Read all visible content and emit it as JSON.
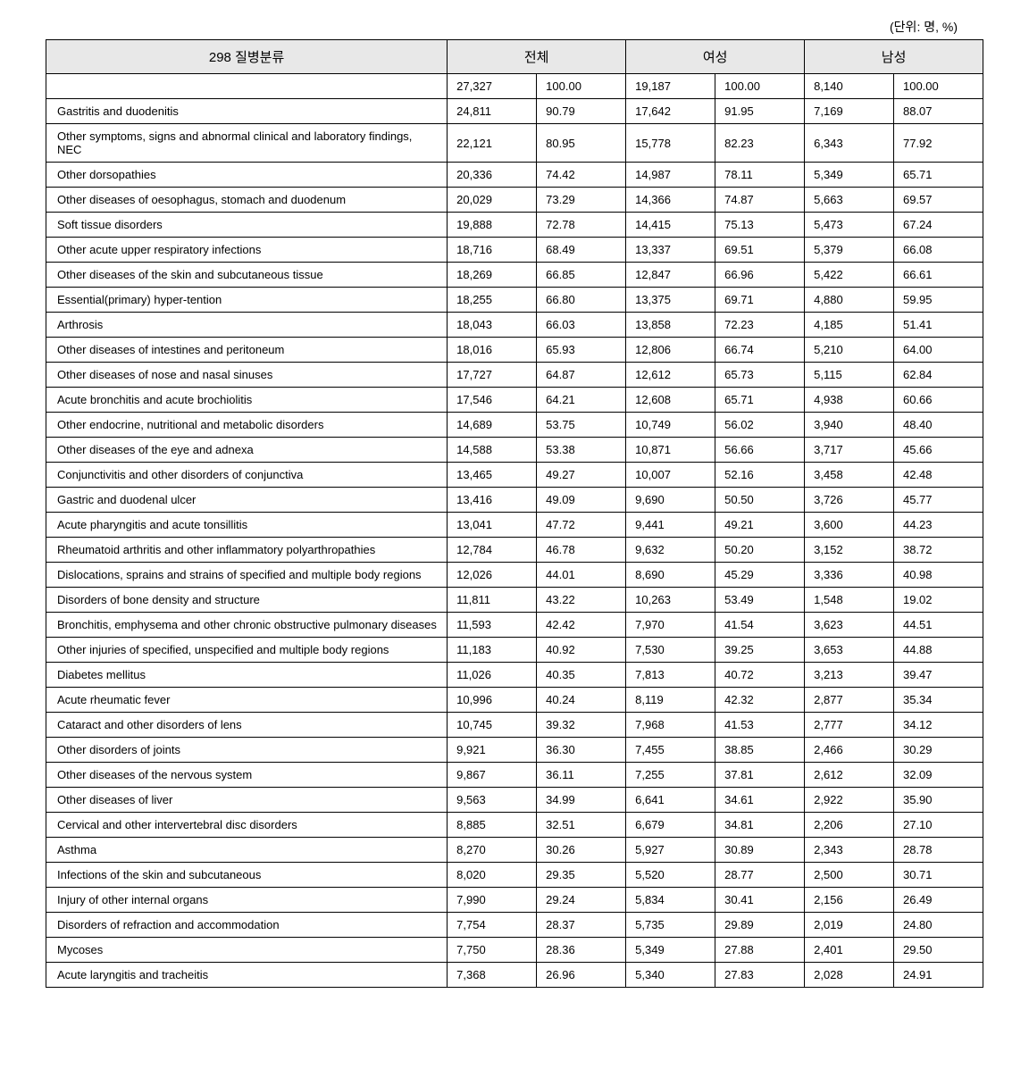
{
  "unit_label": "(단위: 명, %)",
  "headers": {
    "disease": "298 질병분류",
    "total": "전체",
    "female": "여성",
    "male": "남성"
  },
  "rows": [
    {
      "name": "",
      "total_n": "27,327",
      "total_p": "100.00",
      "female_n": "19,187",
      "female_p": "100.00",
      "male_n": "8,140",
      "male_p": "100.00"
    },
    {
      "name": "Gastritis and duodenitis",
      "total_n": "24,811",
      "total_p": "90.79",
      "female_n": "17,642",
      "female_p": "91.95",
      "male_n": "7,169",
      "male_p": "88.07"
    },
    {
      "name": "Other symptoms, signs and abnormal clinical and laboratory findings, NEC",
      "total_n": "22,121",
      "total_p": "80.95",
      "female_n": "15,778",
      "female_p": "82.23",
      "male_n": "6,343",
      "male_p": "77.92"
    },
    {
      "name": "Other dorsopathies",
      "total_n": "20,336",
      "total_p": "74.42",
      "female_n": "14,987",
      "female_p": "78.11",
      "male_n": "5,349",
      "male_p": "65.71"
    },
    {
      "name": "Other diseases of oesophagus, stomach and duodenum",
      "total_n": "20,029",
      "total_p": "73.29",
      "female_n": "14,366",
      "female_p": "74.87",
      "male_n": "5,663",
      "male_p": "69.57"
    },
    {
      "name": "Soft tissue disorders",
      "total_n": "19,888",
      "total_p": "72.78",
      "female_n": "14,415",
      "female_p": "75.13",
      "male_n": "5,473",
      "male_p": "67.24"
    },
    {
      "name": "Other acute upper respiratory infections",
      "total_n": "18,716",
      "total_p": "68.49",
      "female_n": "13,337",
      "female_p": "69.51",
      "male_n": "5,379",
      "male_p": "66.08"
    },
    {
      "name": "Other diseases of the skin and subcutaneous tissue",
      "total_n": "18,269",
      "total_p": "66.85",
      "female_n": "12,847",
      "female_p": "66.96",
      "male_n": "5,422",
      "male_p": "66.61"
    },
    {
      "name": "Essential(primary) hyper-tention",
      "total_n": "18,255",
      "total_p": "66.80",
      "female_n": "13,375",
      "female_p": "69.71",
      "male_n": "4,880",
      "male_p": "59.95"
    },
    {
      "name": "Arthrosis",
      "total_n": "18,043",
      "total_p": "66.03",
      "female_n": "13,858",
      "female_p": "72.23",
      "male_n": "4,185",
      "male_p": "51.41"
    },
    {
      "name": "Other diseases of intestines and peritoneum",
      "total_n": "18,016",
      "total_p": "65.93",
      "female_n": "12,806",
      "female_p": "66.74",
      "male_n": "5,210",
      "male_p": "64.00"
    },
    {
      "name": "Other diseases of nose and nasal sinuses",
      "total_n": "17,727",
      "total_p": "64.87",
      "female_n": "12,612",
      "female_p": "65.73",
      "male_n": "5,115",
      "male_p": "62.84"
    },
    {
      "name": "Acute bronchitis and acute brochiolitis",
      "total_n": "17,546",
      "total_p": "64.21",
      "female_n": "12,608",
      "female_p": "65.71",
      "male_n": "4,938",
      "male_p": "60.66"
    },
    {
      "name": "Other endocrine, nutritional and metabolic disorders",
      "total_n": "14,689",
      "total_p": "53.75",
      "female_n": "10,749",
      "female_p": "56.02",
      "male_n": "3,940",
      "male_p": "48.40"
    },
    {
      "name": "Other diseases of the eye and adnexa",
      "total_n": "14,588",
      "total_p": "53.38",
      "female_n": "10,871",
      "female_p": "56.66",
      "male_n": "3,717",
      "male_p": "45.66"
    },
    {
      "name": "Conjunctivitis and other disorders of conjunctiva",
      "total_n": "13,465",
      "total_p": "49.27",
      "female_n": "10,007",
      "female_p": "52.16",
      "male_n": "3,458",
      "male_p": "42.48"
    },
    {
      "name": "Gastric and duodenal ulcer",
      "total_n": "13,416",
      "total_p": "49.09",
      "female_n": "9,690",
      "female_p": "50.50",
      "male_n": "3,726",
      "male_p": "45.77"
    },
    {
      "name": "Acute pharyngitis and acute tonsillitis",
      "total_n": "13,041",
      "total_p": "47.72",
      "female_n": "9,441",
      "female_p": "49.21",
      "male_n": "3,600",
      "male_p": "44.23"
    },
    {
      "name": "Rheumatoid arthritis and other inflammatory polyarthropathies",
      "total_n": "12,784",
      "total_p": "46.78",
      "female_n": "9,632",
      "female_p": "50.20",
      "male_n": "3,152",
      "male_p": "38.72"
    },
    {
      "name": "Dislocations, sprains and strains of specified and multiple body regions",
      "total_n": "12,026",
      "total_p": "44.01",
      "female_n": "8,690",
      "female_p": "45.29",
      "male_n": "3,336",
      "male_p": "40.98"
    },
    {
      "name": "Disorders of bone density and structure",
      "total_n": "11,811",
      "total_p": "43.22",
      "female_n": "10,263",
      "female_p": "53.49",
      "male_n": "1,548",
      "male_p": "19.02"
    },
    {
      "name": "Bronchitis, emphysema and other chronic obstructive pulmonary diseases",
      "total_n": "11,593",
      "total_p": "42.42",
      "female_n": "7,970",
      "female_p": "41.54",
      "male_n": "3,623",
      "male_p": "44.51"
    },
    {
      "name": "Other injuries of specified, unspecified and multiple body regions",
      "total_n": "11,183",
      "total_p": "40.92",
      "female_n": "7,530",
      "female_p": "39.25",
      "male_n": "3,653",
      "male_p": "44.88"
    },
    {
      "name": "Diabetes mellitus",
      "total_n": "11,026",
      "total_p": "40.35",
      "female_n": "7,813",
      "female_p": "40.72",
      "male_n": "3,213",
      "male_p": "39.47"
    },
    {
      "name": "Acute rheumatic fever",
      "total_n": "10,996",
      "total_p": "40.24",
      "female_n": "8,119",
      "female_p": "42.32",
      "male_n": "2,877",
      "male_p": "35.34"
    },
    {
      "name": "Cataract and other disorders of lens",
      "total_n": "10,745",
      "total_p": "39.32",
      "female_n": "7,968",
      "female_p": "41.53",
      "male_n": "2,777",
      "male_p": "34.12"
    },
    {
      "name": "Other disorders of joints",
      "total_n": "9,921",
      "total_p": "36.30",
      "female_n": "7,455",
      "female_p": "38.85",
      "male_n": "2,466",
      "male_p": "30.29"
    },
    {
      "name": "Other diseases of the nervous system",
      "total_n": "9,867",
      "total_p": "36.11",
      "female_n": "7,255",
      "female_p": "37.81",
      "male_n": "2,612",
      "male_p": "32.09"
    },
    {
      "name": "Other diseases of liver",
      "total_n": "9,563",
      "total_p": "34.99",
      "female_n": "6,641",
      "female_p": "34.61",
      "male_n": "2,922",
      "male_p": "35.90"
    },
    {
      "name": "Cervical and other intervertebral disc disorders",
      "total_n": "8,885",
      "total_p": "32.51",
      "female_n": "6,679",
      "female_p": "34.81",
      "male_n": "2,206",
      "male_p": "27.10"
    },
    {
      "name": "Asthma",
      "total_n": "8,270",
      "total_p": "30.26",
      "female_n": "5,927",
      "female_p": "30.89",
      "male_n": "2,343",
      "male_p": "28.78"
    },
    {
      "name": "Infections of the skin and subcutaneous",
      "total_n": "8,020",
      "total_p": "29.35",
      "female_n": "5,520",
      "female_p": "28.77",
      "male_n": "2,500",
      "male_p": "30.71"
    },
    {
      "name": "Injury of other internal organs",
      "total_n": "7,990",
      "total_p": "29.24",
      "female_n": "5,834",
      "female_p": "30.41",
      "male_n": "2,156",
      "male_p": "26.49"
    },
    {
      "name": "Disorders of refraction and accommodation",
      "total_n": "7,754",
      "total_p": "28.37",
      "female_n": "5,735",
      "female_p": "29.89",
      "male_n": "2,019",
      "male_p": "24.80"
    },
    {
      "name": "Mycoses",
      "total_n": "7,750",
      "total_p": "28.36",
      "female_n": "5,349",
      "female_p": "27.88",
      "male_n": "2,401",
      "male_p": "29.50"
    },
    {
      "name": "Acute laryngitis and tracheitis",
      "total_n": "7,368",
      "total_p": "26.96",
      "female_n": "5,340",
      "female_p": "27.83",
      "male_n": "2,028",
      "male_p": "24.91"
    }
  ],
  "style": {
    "header_bg": "#e8e8e8",
    "border_color": "#000000",
    "font_size_body": 13,
    "font_size_header": 15,
    "font_size_unit": 14,
    "background_color": "#ffffff"
  }
}
